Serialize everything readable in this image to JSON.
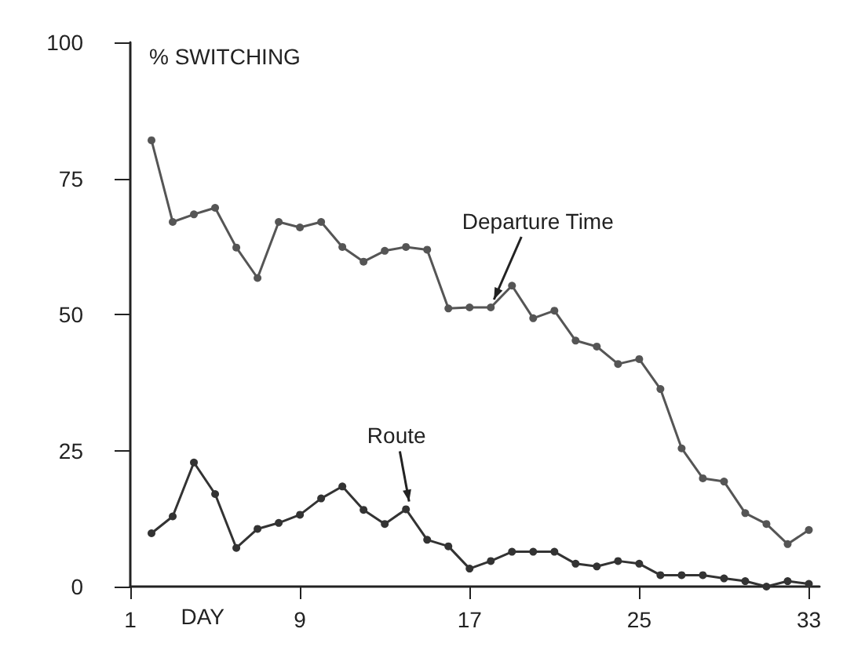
{
  "chart_data": {
    "type": "line",
    "ylabel": "% SWITCHING",
    "xlabel": "DAY",
    "x": [
      2,
      3,
      4,
      5,
      6,
      7,
      8,
      9,
      10,
      11,
      12,
      13,
      14,
      15,
      16,
      17,
      18,
      19,
      20,
      21,
      22,
      23,
      24,
      25,
      26,
      27,
      28,
      29,
      30,
      31,
      32,
      33
    ],
    "series": [
      {
        "color": "#555555",
        "values": [
          82,
          67,
          68.4,
          69.6,
          62.3,
          56.7,
          67,
          66,
          67,
          62.4,
          59.7,
          61.7,
          62.4,
          61.9,
          51.1,
          51.3,
          51.3,
          55.3,
          49.3,
          50.7,
          45.2,
          44.1,
          40.9,
          41.8,
          36.3,
          25.4,
          19.9,
          19.3,
          13.5,
          11.5,
          7.8,
          10.4
        ]
      },
      {
        "color": "#333333",
        "values": [
          9.8,
          12.9,
          22.8,
          17,
          7.1,
          10.6,
          11.7,
          13.2,
          16.2,
          18.4,
          14.1,
          11.5,
          14.2,
          8.6,
          7.4,
          3.3,
          4.7,
          6.4,
          6.4,
          6.4,
          4.2,
          3.7,
          4.7,
          4.2,
          2.1,
          2.1,
          2.1,
          1.5,
          1,
          0,
          1,
          0.5
        ]
      }
    ],
    "annotations": [
      {
        "text": "Departure Time",
        "x": 18,
        "y": 51.3
      },
      {
        "text": "Route",
        "x": 14,
        "y": 14.2
      }
    ],
    "xlim": [
      1,
      33.5
    ],
    "xticks": [
      1,
      9,
      17,
      25,
      33
    ],
    "ylim": [
      0,
      100
    ],
    "yticks": [
      0,
      25,
      50,
      75,
      100
    ],
    "grid": false,
    "marker": "circle",
    "line_style": "solid"
  }
}
